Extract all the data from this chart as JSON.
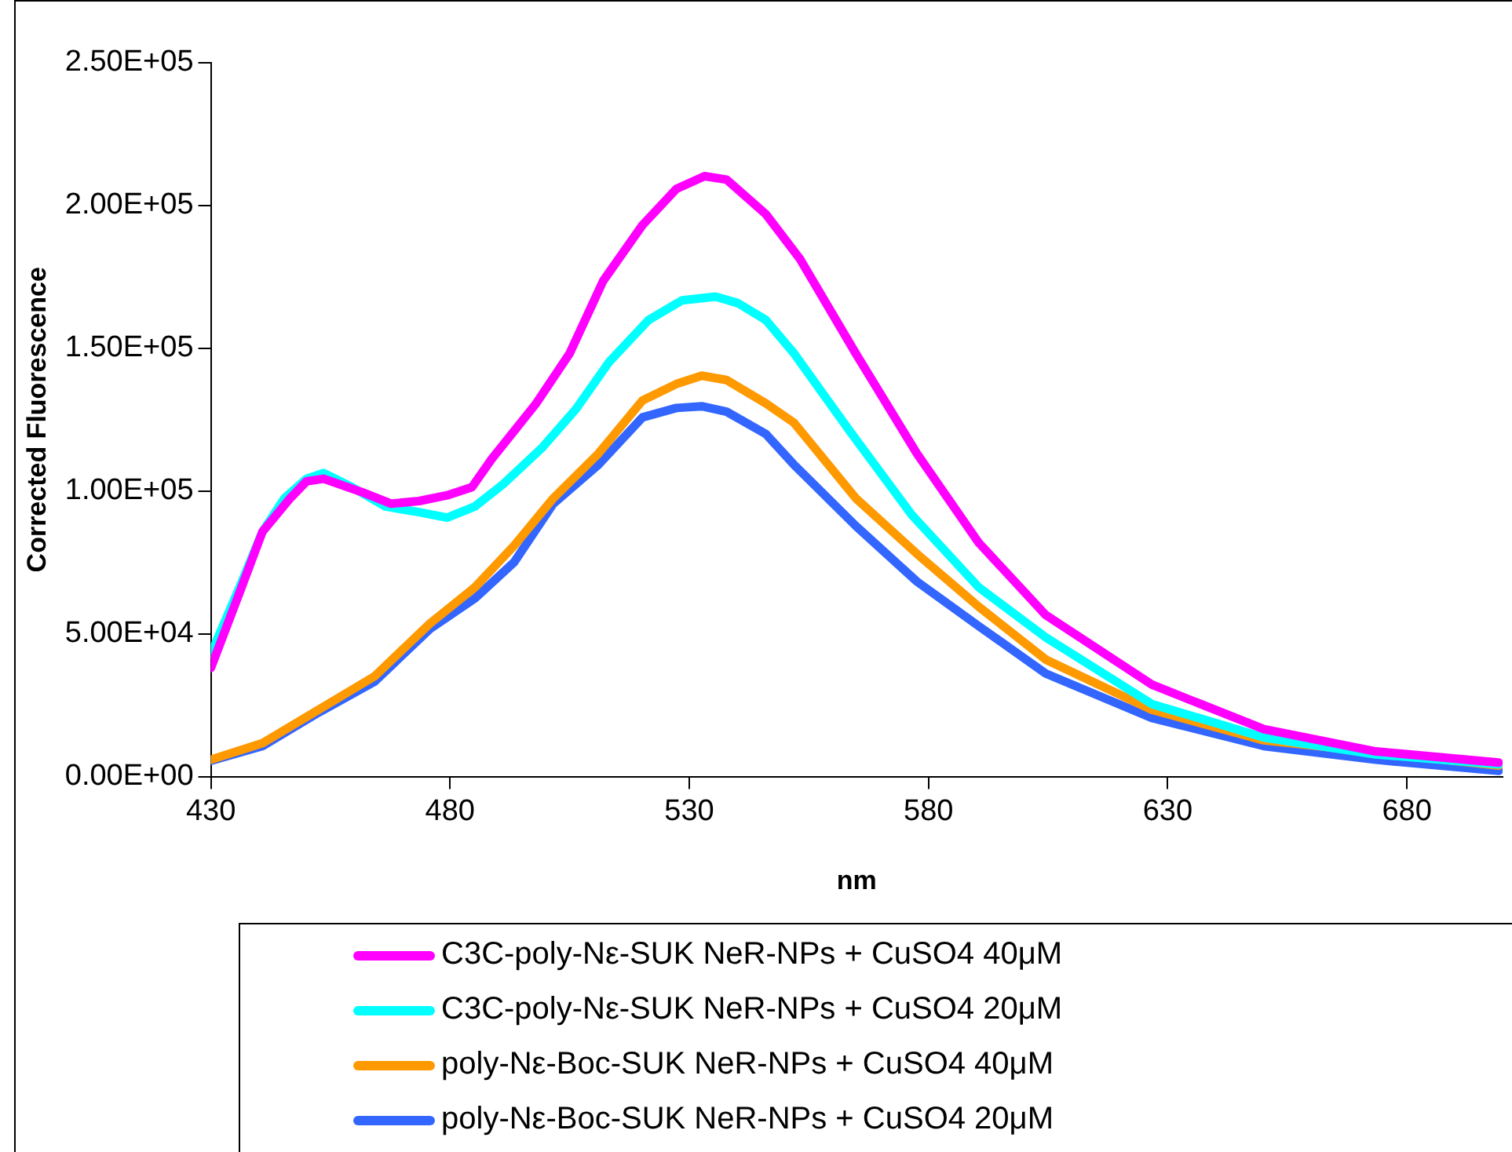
{
  "chart_data": {
    "type": "line",
    "xlabel": "nm",
    "ylabel": "Corrected Fluorescence",
    "xlim": [
      430,
      700
    ],
    "xticks": [
      430,
      480,
      530,
      580,
      630,
      680
    ],
    "ylim": [
      0,
      250000
    ],
    "yticks": [
      {
        "value": 0,
        "label": "0.00E+00"
      },
      {
        "value": 50000,
        "label": "5.00E+04"
      },
      {
        "value": 100000,
        "label": "1.00E+05"
      },
      {
        "value": 150000,
        "label": "1.50E+05"
      },
      {
        "value": 200000,
        "label": "2.00E+05"
      },
      {
        "value": 250000,
        "label": "2.50E+05"
      }
    ],
    "grid": false,
    "legend": "bottom",
    "marker": "none",
    "line_style": "solid",
    "series": [
      {
        "name": "C3C-poly-Nε-SUK NeR-NPs + CuSO4 40μM",
        "color": "#ff00ff",
        "x": [
          430,
          436,
          440.8,
          446.6,
          450,
          453.6,
          461.8,
          467.7,
          473.5,
          479.4,
          484.6,
          488.7,
          498,
          505,
          512,
          520.2,
          527.3,
          533.2,
          537.8,
          546,
          553.1,
          564.8,
          577.6,
          590.5,
          604.5,
          626.7,
          650.1,
          673.5,
          699.2
        ],
        "values": [
          38000,
          64400,
          85800,
          97500,
          103400,
          104300,
          99500,
          95600,
          96500,
          98500,
          101400,
          111200,
          130700,
          148200,
          173600,
          193100,
          205800,
          210300,
          209100,
          197000,
          181400,
          148200,
          113100,
          81900,
          56600,
          32200,
          16600,
          8800,
          4900
        ]
      },
      {
        "name": "C3C-poly-Nε-SUK NeR-NPs + CuSO4 20μM",
        "color": "#00ffff",
        "x": [
          430,
          436,
          440.8,
          445.4,
          450,
          453.6,
          459.5,
          466.5,
          473.5,
          479.4,
          485.2,
          491.1,
          499.2,
          506.3,
          513.3,
          521.5,
          528.5,
          535.5,
          540.2,
          546,
          551.9,
          563.6,
          576.5,
          590.5,
          604.5,
          626.7,
          650.1,
          673.5,
          699.2
        ],
        "values": [
          42900,
          66300,
          85800,
          97500,
          104300,
          106300,
          101400,
          94600,
          92600,
          90700,
          94600,
          102400,
          115100,
          128700,
          145300,
          159900,
          166800,
          168100,
          165800,
          159900,
          148200,
          120900,
          91700,
          66300,
          48800,
          25400,
          13700,
          7800,
          4300
        ]
      },
      {
        "name": "poly-Nε-Boc-SUK NeR-NPs + CuSO4 40μM",
        "color": "#ff9900",
        "x": [
          430,
          440.8,
          452.5,
          464.2,
          475.8,
          485.2,
          493.4,
          501.6,
          511,
          520.2,
          527.3,
          532.6,
          537.8,
          546,
          551.9,
          564.8,
          577.6,
          590.5,
          604.5,
          626.7,
          650.1,
          699.2
        ],
        "values": [
          5900,
          11700,
          23400,
          35100,
          53600,
          66300,
          80900,
          97500,
          113100,
          131700,
          137500,
          140400,
          138900,
          130700,
          123900,
          97500,
          78000,
          59500,
          41000,
          23400,
          12700,
          3900
        ]
      },
      {
        "name": "poly-Nε-Boc-SUK NeR-NPs + CuSO4 20μM",
        "color": "#3366ff",
        "x": [
          430,
          440.8,
          452.5,
          464.2,
          475.8,
          485.2,
          493.4,
          501.6,
          511,
          520.2,
          527.3,
          532.6,
          537.8,
          546,
          551.9,
          564.8,
          577.6,
          590.5,
          604.5,
          626.7,
          650.1,
          673.5,
          699.2
        ],
        "values": [
          5500,
          10700,
          22400,
          33200,
          51700,
          62400,
          75100,
          95600,
          109200,
          125800,
          129100,
          129700,
          127800,
          120000,
          109200,
          87800,
          68300,
          52700,
          36100,
          20500,
          10700,
          5900,
          2000
        ]
      }
    ]
  }
}
